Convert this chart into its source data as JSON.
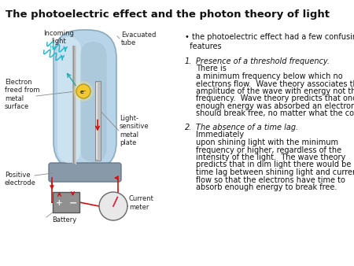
{
  "title": "The photoelectric effect and the photon theory of light",
  "title_fontsize": 9.5,
  "bg_color": "#ffffff",
  "text_color": "#111111",
  "tube_fill": "#b8d4e8",
  "tube_edge": "#8aabbd",
  "tube_inner_fill": "#c8dcea",
  "rod_color": "#b0b0b0",
  "plate_fill": "#c0c0c0",
  "plate_edge": "#909090",
  "electron_fill": "#f0c830",
  "electron_edge": "#b09000",
  "base_fill": "#8899aa",
  "base_edge": "#667788",
  "bat_fill": "#909090",
  "bat_edge": "#555555",
  "meter_fill": "#e8e8e8",
  "meter_edge": "#666666",
  "needle_color": "#cc1111",
  "wire_color": "#cc1111",
  "label_color": "#222222",
  "light_color": "#22bbcc",
  "arrow_teal": "#22aaaa",
  "bullet": "• the photoelectric effect had a few confusing\n  features",
  "item1_num": "1.",
  "item1_italic": "Presence of a threshold frequency.",
  "item1_rest": " There is a minimum frequency below which no electrons flow.  Wave theory associates the amplitude of the wave with energy not the frequency.  Wave theory predicts that once enough energy was absorbed an electron should break free, no matter what the color.",
  "item2_num": "2.",
  "item2_italic": "The absence of a time lag.",
  "item2_rest": "  Immediately upon shining light with the minimum frequency or higher, regardless of the intensity of the light.  The wave theory predicts that in dim light there would be a time lag between shining light and current flow so that the electrons have time to absorb enough energy to break free.",
  "lbl_incoming": "Incoming\nlight",
  "lbl_evacuated": "Evacuated\ntube",
  "lbl_electron": "Electron\nfreed from\nmetal\nsurface",
  "lbl_lightplate": "Light-\nsensitive\nmetal\nplate",
  "lbl_positive": "Positive\nelectrode",
  "lbl_current": "Current\nmeter",
  "lbl_battery": "Battery"
}
